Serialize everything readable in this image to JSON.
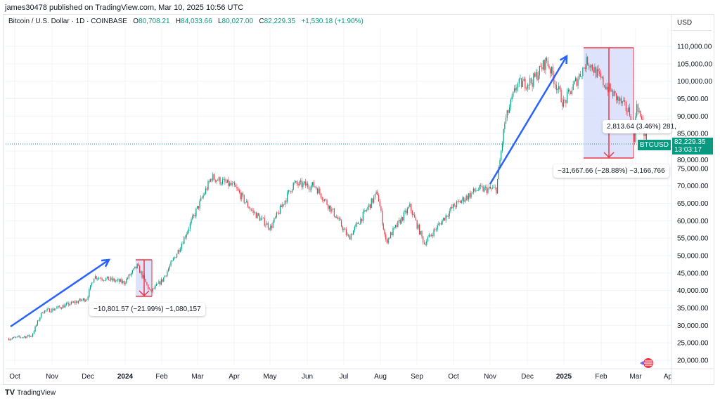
{
  "header": {
    "published": "james30478 published on TradingView.com, Mar 10, 2025 10:56 UTC"
  },
  "legend": {
    "symbol": "Bitcoin / U.S. Dollar · 1D · COINBASE",
    "o_label": "O",
    "o": "80,708.21",
    "h_label": "H",
    "h": "84,033.66",
    "l_label": "L",
    "l": "80,027.00",
    "c_label": "C",
    "c": "82,229.35",
    "change": "+1,530.18 (+1.90%)"
  },
  "currency": "USD",
  "symbol_tag": "BTCUSD",
  "price_tag": {
    "price": "82,229.35",
    "countdown": "13:03:17"
  },
  "measures": [
    "−10,801.57 (−21.99%) −1,080,157",
    "−31,667.66 (−28.88%) −3,166,766",
    "2,813.64 (3.46%) 281,"
  ],
  "branding": "TradingView",
  "colors": {
    "up": "#089981",
    "down": "#f23645",
    "arrow": "#2962ff",
    "measure_fill": "#d6dcfb"
  },
  "chart_data": {
    "type": "candlestick",
    "title": "Bitcoin / U.S. Dollar · 1D · COINBASE",
    "ylim": [
      17500,
      112500
    ],
    "y_ticks": [
      "110,000.00",
      "105,000.00",
      "100,000.00",
      "95,000.00",
      "90,000.00",
      "85,000.00",
      "80,000.00",
      "75,000.00",
      "70,000.00",
      "65,000.00",
      "60,000.00",
      "55,000.00",
      "50,000.00",
      "45,000.00",
      "40,000.00",
      "35,000.00",
      "30,000.00",
      "25,000.00",
      "20,000.00"
    ],
    "x_ticks": [
      "Oct",
      "Nov",
      "Dec",
      "2024",
      "Feb",
      "Mar",
      "Apr",
      "May",
      "Jun",
      "Jul",
      "Aug",
      "Sep",
      "Oct",
      "Nov",
      "Dec",
      "2025",
      "Feb",
      "Mar",
      "Ap"
    ],
    "close_path": [
      [
        "2023-09-26",
        26200
      ],
      [
        "2023-10-15",
        27000
      ],
      [
        "2023-10-24",
        34000
      ],
      [
        "2023-11-01",
        34500
      ],
      [
        "2023-11-30",
        37700
      ],
      [
        "2023-12-06",
        44000
      ],
      [
        "2023-12-31",
        42300
      ],
      [
        "2024-01-11",
        47000
      ],
      [
        "2024-01-22",
        39500
      ],
      [
        "2024-02-01",
        43000
      ],
      [
        "2024-02-15",
        52000
      ],
      [
        "2024-02-28",
        62000
      ],
      [
        "2024-03-13",
        72500
      ],
      [
        "2024-04-01",
        69700
      ],
      [
        "2024-04-15",
        63000
      ],
      [
        "2024-05-01",
        58000
      ],
      [
        "2024-05-20",
        70500
      ],
      [
        "2024-06-07",
        70000
      ],
      [
        "2024-06-25",
        61000
      ],
      [
        "2024-07-05",
        55000
      ],
      [
        "2024-07-29",
        68000
      ],
      [
        "2024-08-05",
        54000
      ],
      [
        "2024-08-25",
        64000
      ],
      [
        "2024-09-06",
        53500
      ],
      [
        "2024-09-30",
        64000
      ],
      [
        "2024-10-20",
        69000
      ],
      [
        "2024-11-05",
        69000
      ],
      [
        "2024-11-12",
        88000
      ],
      [
        "2024-11-22",
        99000
      ],
      [
        "2024-12-05",
        100000
      ],
      [
        "2024-12-17",
        106000
      ],
      [
        "2024-12-31",
        93500
      ],
      [
        "2025-01-20",
        106000
      ],
      [
        "2025-02-01",
        100000
      ],
      [
        "2025-02-24",
        91000
      ],
      [
        "2025-02-28",
        84000
      ],
      [
        "2025-03-02",
        94000
      ],
      [
        "2025-03-10",
        82229.35
      ]
    ],
    "last": {
      "open": 80708.21,
      "high": 84033.66,
      "low": 80027.0,
      "close": 82229.35
    }
  }
}
